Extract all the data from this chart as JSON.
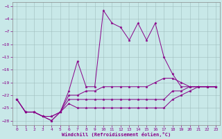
{
  "background_color": "#c8e8e8",
  "grid_color": "#a0bebe",
  "line_color": "#880088",
  "xlabel": "Windchill (Refroidissement éolien,°C)",
  "x_values": [
    0,
    1,
    2,
    3,
    4,
    5,
    6,
    7,
    8,
    9,
    10,
    11,
    12,
    13,
    14,
    15,
    16,
    17,
    18,
    19,
    20,
    21,
    22,
    23
  ],
  "line1": [
    -23,
    -26,
    -26,
    -27,
    -28,
    -26,
    -21,
    -14,
    -20,
    -20,
    -2,
    -5,
    -6,
    -9,
    -5,
    -9,
    -5,
    -13,
    -17,
    -20,
    -20,
    -20,
    -20,
    -20
  ],
  "line2": [
    -23,
    -26,
    -26,
    -27,
    -28,
    -26,
    -22,
    -22,
    -21,
    -21,
    -20,
    -20,
    -20,
    -20,
    -20,
    -20,
    -19,
    -18,
    -18,
    -19,
    -20,
    -20,
    -20,
    -20
  ],
  "line3": [
    -23,
    -26,
    -26,
    -27,
    -27,
    -26,
    -23,
    -23,
    -23,
    -23,
    -23,
    -23,
    -23,
    -23,
    -23,
    -23,
    -23,
    -23,
    -21,
    -21,
    -20,
    -20,
    -20,
    -20
  ],
  "line4": [
    -23,
    -26,
    -26,
    -27,
    -27,
    -26,
    -24,
    -25,
    -25,
    -25,
    -25,
    -25,
    -25,
    -25,
    -25,
    -25,
    -25,
    -25,
    -23,
    -22,
    -21,
    -20,
    -20,
    -20
  ],
  "ylim": [
    -29,
    0
  ],
  "xlim": [
    -0.5,
    23.5
  ],
  "yticks": [
    -28,
    -25,
    -22,
    -19,
    -16,
    -13,
    -10,
    -7,
    -4,
    -1
  ],
  "xticks": [
    0,
    1,
    2,
    3,
    4,
    5,
    6,
    7,
    8,
    9,
    10,
    11,
    12,
    13,
    14,
    15,
    16,
    17,
    18,
    19,
    20,
    21,
    22,
    23
  ]
}
